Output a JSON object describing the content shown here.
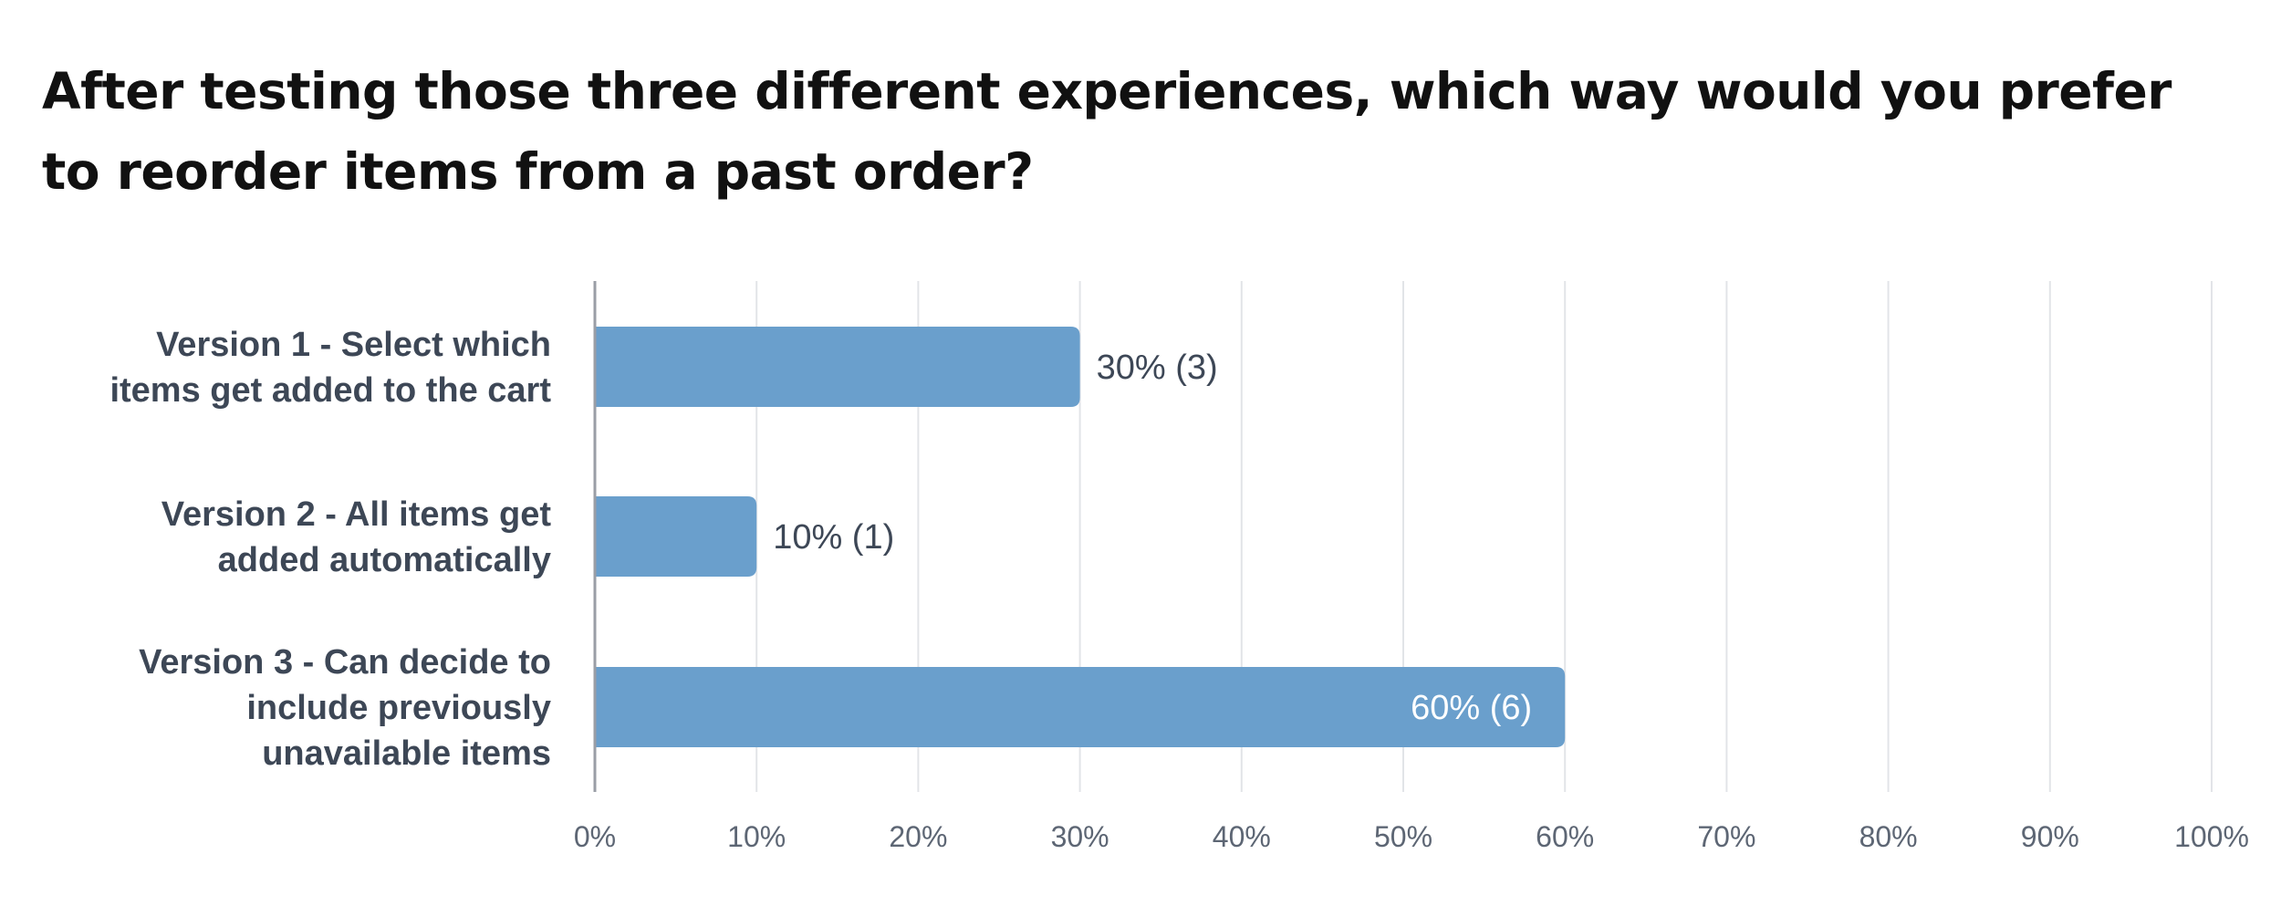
{
  "question": {
    "title": "After testing those three different experiences, which way would you prefer to reorder items from a past order?"
  },
  "colors": {
    "bar": "#6a9fcc",
    "grid": "#e2e4e8",
    "axis": "#9a9ea6"
  },
  "chart_data": {
    "type": "bar",
    "orientation": "horizontal",
    "title": "After testing those three different experiences, which way would you prefer to reorder items from a past order?",
    "categories": [
      [
        "Version 1 - Select which",
        "items get added to the cart"
      ],
      [
        "Version 2 - All items get",
        "added automatically"
      ],
      [
        "Version 3 - Can decide to",
        "include previously",
        "unavailable items"
      ]
    ],
    "values": [
      30,
      10,
      60
    ],
    "counts": [
      3,
      1,
      6
    ],
    "data_labels": [
      "30% (3)",
      "10% (1)",
      "60% (6)"
    ],
    "xlim": [
      0,
      100
    ],
    "xticks": [
      0,
      10,
      20,
      30,
      40,
      50,
      60,
      70,
      80,
      90,
      100
    ],
    "xtick_labels": [
      "0%",
      "10%",
      "20%",
      "30%",
      "40%",
      "50%",
      "60%",
      "70%",
      "80%",
      "90%",
      "100%"
    ],
    "xlabel": "",
    "ylabel": "",
    "grid": true,
    "legend": "none"
  }
}
